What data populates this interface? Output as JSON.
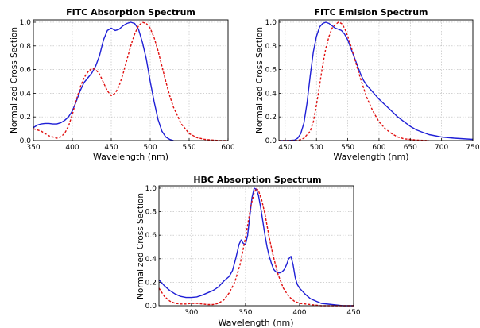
{
  "chart_data": [
    {
      "type": "line",
      "title": "FITC Absorption Spectrum",
      "xlabel": "Wavelength (nm)",
      "ylabel": "Normalized Cross Section",
      "xlim": [
        350,
        600
      ],
      "ylim": [
        0,
        1.02
      ],
      "xticks": [
        350,
        400,
        450,
        500,
        550,
        600
      ],
      "xtick_labels": [
        "350",
        "400",
        "450",
        "500",
        "550",
        "600"
      ],
      "yticks": [
        0,
        0.2,
        0.4,
        0.6,
        0.8,
        1.0
      ],
      "ytick_labels": [
        "0.0",
        "0.2",
        "0.4",
        "0.6",
        "0.8",
        "1.0"
      ],
      "grid": true,
      "series": [
        {
          "color": "#1f1fd6",
          "dash": "solid",
          "x": [
            350,
            355,
            360,
            365,
            370,
            375,
            380,
            385,
            390,
            395,
            400,
            405,
            410,
            415,
            420,
            425,
            430,
            435,
            440,
            445,
            450,
            455,
            460,
            465,
            470,
            475,
            480,
            485,
            490,
            495,
            500,
            505,
            510,
            515,
            520,
            525,
            530
          ],
          "y": [
            0.11,
            0.13,
            0.14,
            0.145,
            0.145,
            0.14,
            0.14,
            0.15,
            0.17,
            0.2,
            0.25,
            0.33,
            0.42,
            0.49,
            0.53,
            0.57,
            0.63,
            0.72,
            0.85,
            0.93,
            0.95,
            0.93,
            0.94,
            0.97,
            0.99,
            1.0,
            0.99,
            0.94,
            0.83,
            0.69,
            0.5,
            0.33,
            0.18,
            0.08,
            0.03,
            0.01,
            0.0
          ]
        },
        {
          "color": "#e01010",
          "dash": "dashed",
          "x": [
            350,
            360,
            370,
            380,
            385,
            390,
            395,
            400,
            405,
            410,
            415,
            420,
            425,
            430,
            435,
            440,
            445,
            450,
            455,
            460,
            465,
            470,
            475,
            480,
            485,
            490,
            495,
            500,
            505,
            510,
            515,
            520,
            525,
            530,
            540,
            550,
            560,
            570,
            580,
            590,
            600
          ],
          "y": [
            0.1,
            0.08,
            0.04,
            0.02,
            0.03,
            0.06,
            0.12,
            0.22,
            0.34,
            0.45,
            0.53,
            0.58,
            0.61,
            0.6,
            0.56,
            0.49,
            0.42,
            0.38,
            0.4,
            0.46,
            0.56,
            0.68,
            0.8,
            0.9,
            0.97,
            1.0,
            0.99,
            0.95,
            0.87,
            0.76,
            0.63,
            0.5,
            0.38,
            0.28,
            0.14,
            0.06,
            0.025,
            0.01,
            0.005,
            0.0,
            0.0
          ]
        }
      ]
    },
    {
      "type": "line",
      "title": "FITC Emision Spectrum",
      "xlabel": "Wavelength (nm)",
      "ylabel": "Normalized Cross Section",
      "xlim": [
        440,
        750
      ],
      "ylim": [
        0,
        1.02
      ],
      "xticks": [
        450,
        500,
        550,
        600,
        650,
        700,
        750
      ],
      "xtick_labels": [
        "450",
        "500",
        "550",
        "600",
        "650",
        "700",
        "750"
      ],
      "yticks": [
        0,
        0.2,
        0.4,
        0.6,
        0.8,
        1.0
      ],
      "ytick_labels": [
        "0.0",
        "0.2",
        "0.4",
        "0.6",
        "0.8",
        "1.0"
      ],
      "grid": true,
      "series": [
        {
          "color": "#1f1fd6",
          "dash": "solid",
          "x": [
            440,
            455,
            465,
            470,
            475,
            480,
            485,
            490,
            495,
            500,
            505,
            510,
            515,
            520,
            525,
            530,
            535,
            540,
            545,
            550,
            555,
            560,
            565,
            570,
            575,
            580,
            590,
            600,
            610,
            620,
            630,
            640,
            650,
            660,
            670,
            680,
            690,
            700,
            720,
            750
          ],
          "y": [
            0.0,
            0.0,
            0.005,
            0.02,
            0.06,
            0.15,
            0.32,
            0.55,
            0.75,
            0.88,
            0.96,
            0.99,
            1.0,
            0.99,
            0.97,
            0.95,
            0.94,
            0.93,
            0.9,
            0.85,
            0.78,
            0.71,
            0.64,
            0.57,
            0.51,
            0.47,
            0.41,
            0.35,
            0.3,
            0.25,
            0.2,
            0.16,
            0.12,
            0.09,
            0.07,
            0.05,
            0.04,
            0.03,
            0.02,
            0.01
          ]
        },
        {
          "color": "#e01010",
          "dash": "dashed",
          "x": [
            440,
            470,
            480,
            490,
            495,
            500,
            505,
            510,
            515,
            520,
            525,
            530,
            535,
            540,
            545,
            550,
            555,
            560,
            565,
            570,
            575,
            580,
            590,
            600,
            610,
            620,
            630,
            640,
            660,
            680
          ],
          "y": [
            0.0,
            0.0,
            0.02,
            0.08,
            0.16,
            0.3,
            0.47,
            0.64,
            0.78,
            0.88,
            0.95,
            0.98,
            1.0,
            0.99,
            0.95,
            0.88,
            0.8,
            0.71,
            0.62,
            0.53,
            0.45,
            0.37,
            0.25,
            0.16,
            0.1,
            0.06,
            0.03,
            0.015,
            0.005,
            0.0
          ]
        }
      ]
    },
    {
      "type": "line",
      "title": "HBC Absorption Spectrum",
      "xlabel": "Wavelength (nm)",
      "ylabel": "Normalized Cross Section",
      "xlim": [
        270,
        450
      ],
      "ylim": [
        0,
        1.02
      ],
      "xticks": [
        300,
        350,
        400,
        450
      ],
      "xtick_labels": [
        "300",
        "350",
        "400",
        "450"
      ],
      "yticks": [
        0,
        0.2,
        0.4,
        0.6,
        0.8,
        1.0
      ],
      "ytick_labels": [
        "0.0",
        "0.2",
        "0.4",
        "0.6",
        "0.8",
        "1.0"
      ],
      "grid": true,
      "series": [
        {
          "color": "#1f1fd6",
          "dash": "solid",
          "x": [
            270,
            275,
            280,
            285,
            290,
            295,
            300,
            305,
            310,
            315,
            320,
            325,
            330,
            335,
            338,
            341,
            344,
            346,
            348,
            350,
            352,
            354,
            356,
            358,
            360,
            362,
            364,
            366,
            368,
            370,
            372,
            374,
            376,
            378,
            380,
            382,
            384,
            386,
            388,
            390,
            392,
            394,
            396,
            398,
            400,
            405,
            410,
            415,
            420,
            430,
            440,
            450
          ],
          "y": [
            0.22,
            0.17,
            0.13,
            0.1,
            0.08,
            0.07,
            0.07,
            0.075,
            0.09,
            0.11,
            0.13,
            0.16,
            0.21,
            0.25,
            0.3,
            0.4,
            0.52,
            0.56,
            0.53,
            0.52,
            0.6,
            0.76,
            0.92,
            1.0,
            0.99,
            0.94,
            0.84,
            0.72,
            0.6,
            0.5,
            0.42,
            0.36,
            0.31,
            0.29,
            0.28,
            0.28,
            0.29,
            0.31,
            0.35,
            0.4,
            0.42,
            0.35,
            0.24,
            0.18,
            0.15,
            0.1,
            0.06,
            0.04,
            0.02,
            0.01,
            0.0,
            0.0
          ]
        },
        {
          "color": "#e01010",
          "dash": "dashed",
          "x": [
            270,
            275,
            280,
            285,
            290,
            295,
            300,
            305,
            310,
            315,
            320,
            325,
            330,
            335,
            340,
            345,
            350,
            355,
            358,
            360,
            362,
            365,
            368,
            370,
            372,
            375,
            378,
            380,
            385,
            390,
            395,
            400,
            410,
            420,
            430,
            440,
            450
          ],
          "y": [
            0.15,
            0.08,
            0.04,
            0.02,
            0.015,
            0.015,
            0.02,
            0.02,
            0.015,
            0.01,
            0.01,
            0.02,
            0.05,
            0.11,
            0.2,
            0.35,
            0.58,
            0.85,
            0.96,
            1.0,
            0.98,
            0.9,
            0.78,
            0.68,
            0.58,
            0.45,
            0.34,
            0.27,
            0.15,
            0.08,
            0.04,
            0.02,
            0.01,
            0.0,
            0.0,
            0.0,
            0.0
          ]
        }
      ]
    }
  ]
}
